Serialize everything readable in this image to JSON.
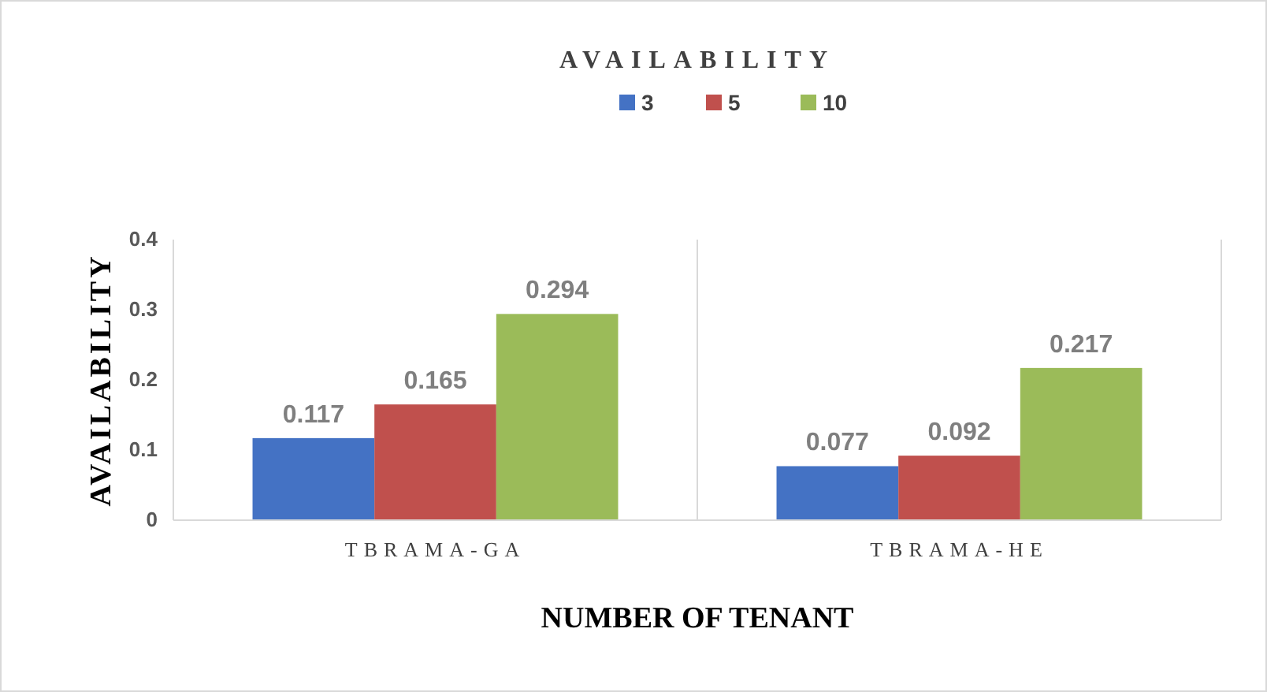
{
  "chart_data": {
    "type": "bar",
    "title": "AVAILABILITY",
    "xlabel": "NUMBER OF TENANT",
    "ylabel": "AVAILABILITY",
    "categories": [
      "TBRAMA-GA",
      "TBRAMA-HE"
    ],
    "series": [
      {
        "name": "3",
        "color": "#4472c4",
        "values": [
          0.117,
          0.077
        ]
      },
      {
        "name": "5",
        "color": "#c0504d",
        "values": [
          0.165,
          0.092
        ]
      },
      {
        "name": "10",
        "color": "#9bbb59",
        "values": [
          0.294,
          0.217
        ]
      }
    ],
    "ylim": [
      0,
      0.4
    ],
    "yticks": [
      0,
      0.1,
      0.2,
      0.3,
      0.4
    ],
    "grid": "x",
    "legend": "top",
    "data_labels": true
  }
}
